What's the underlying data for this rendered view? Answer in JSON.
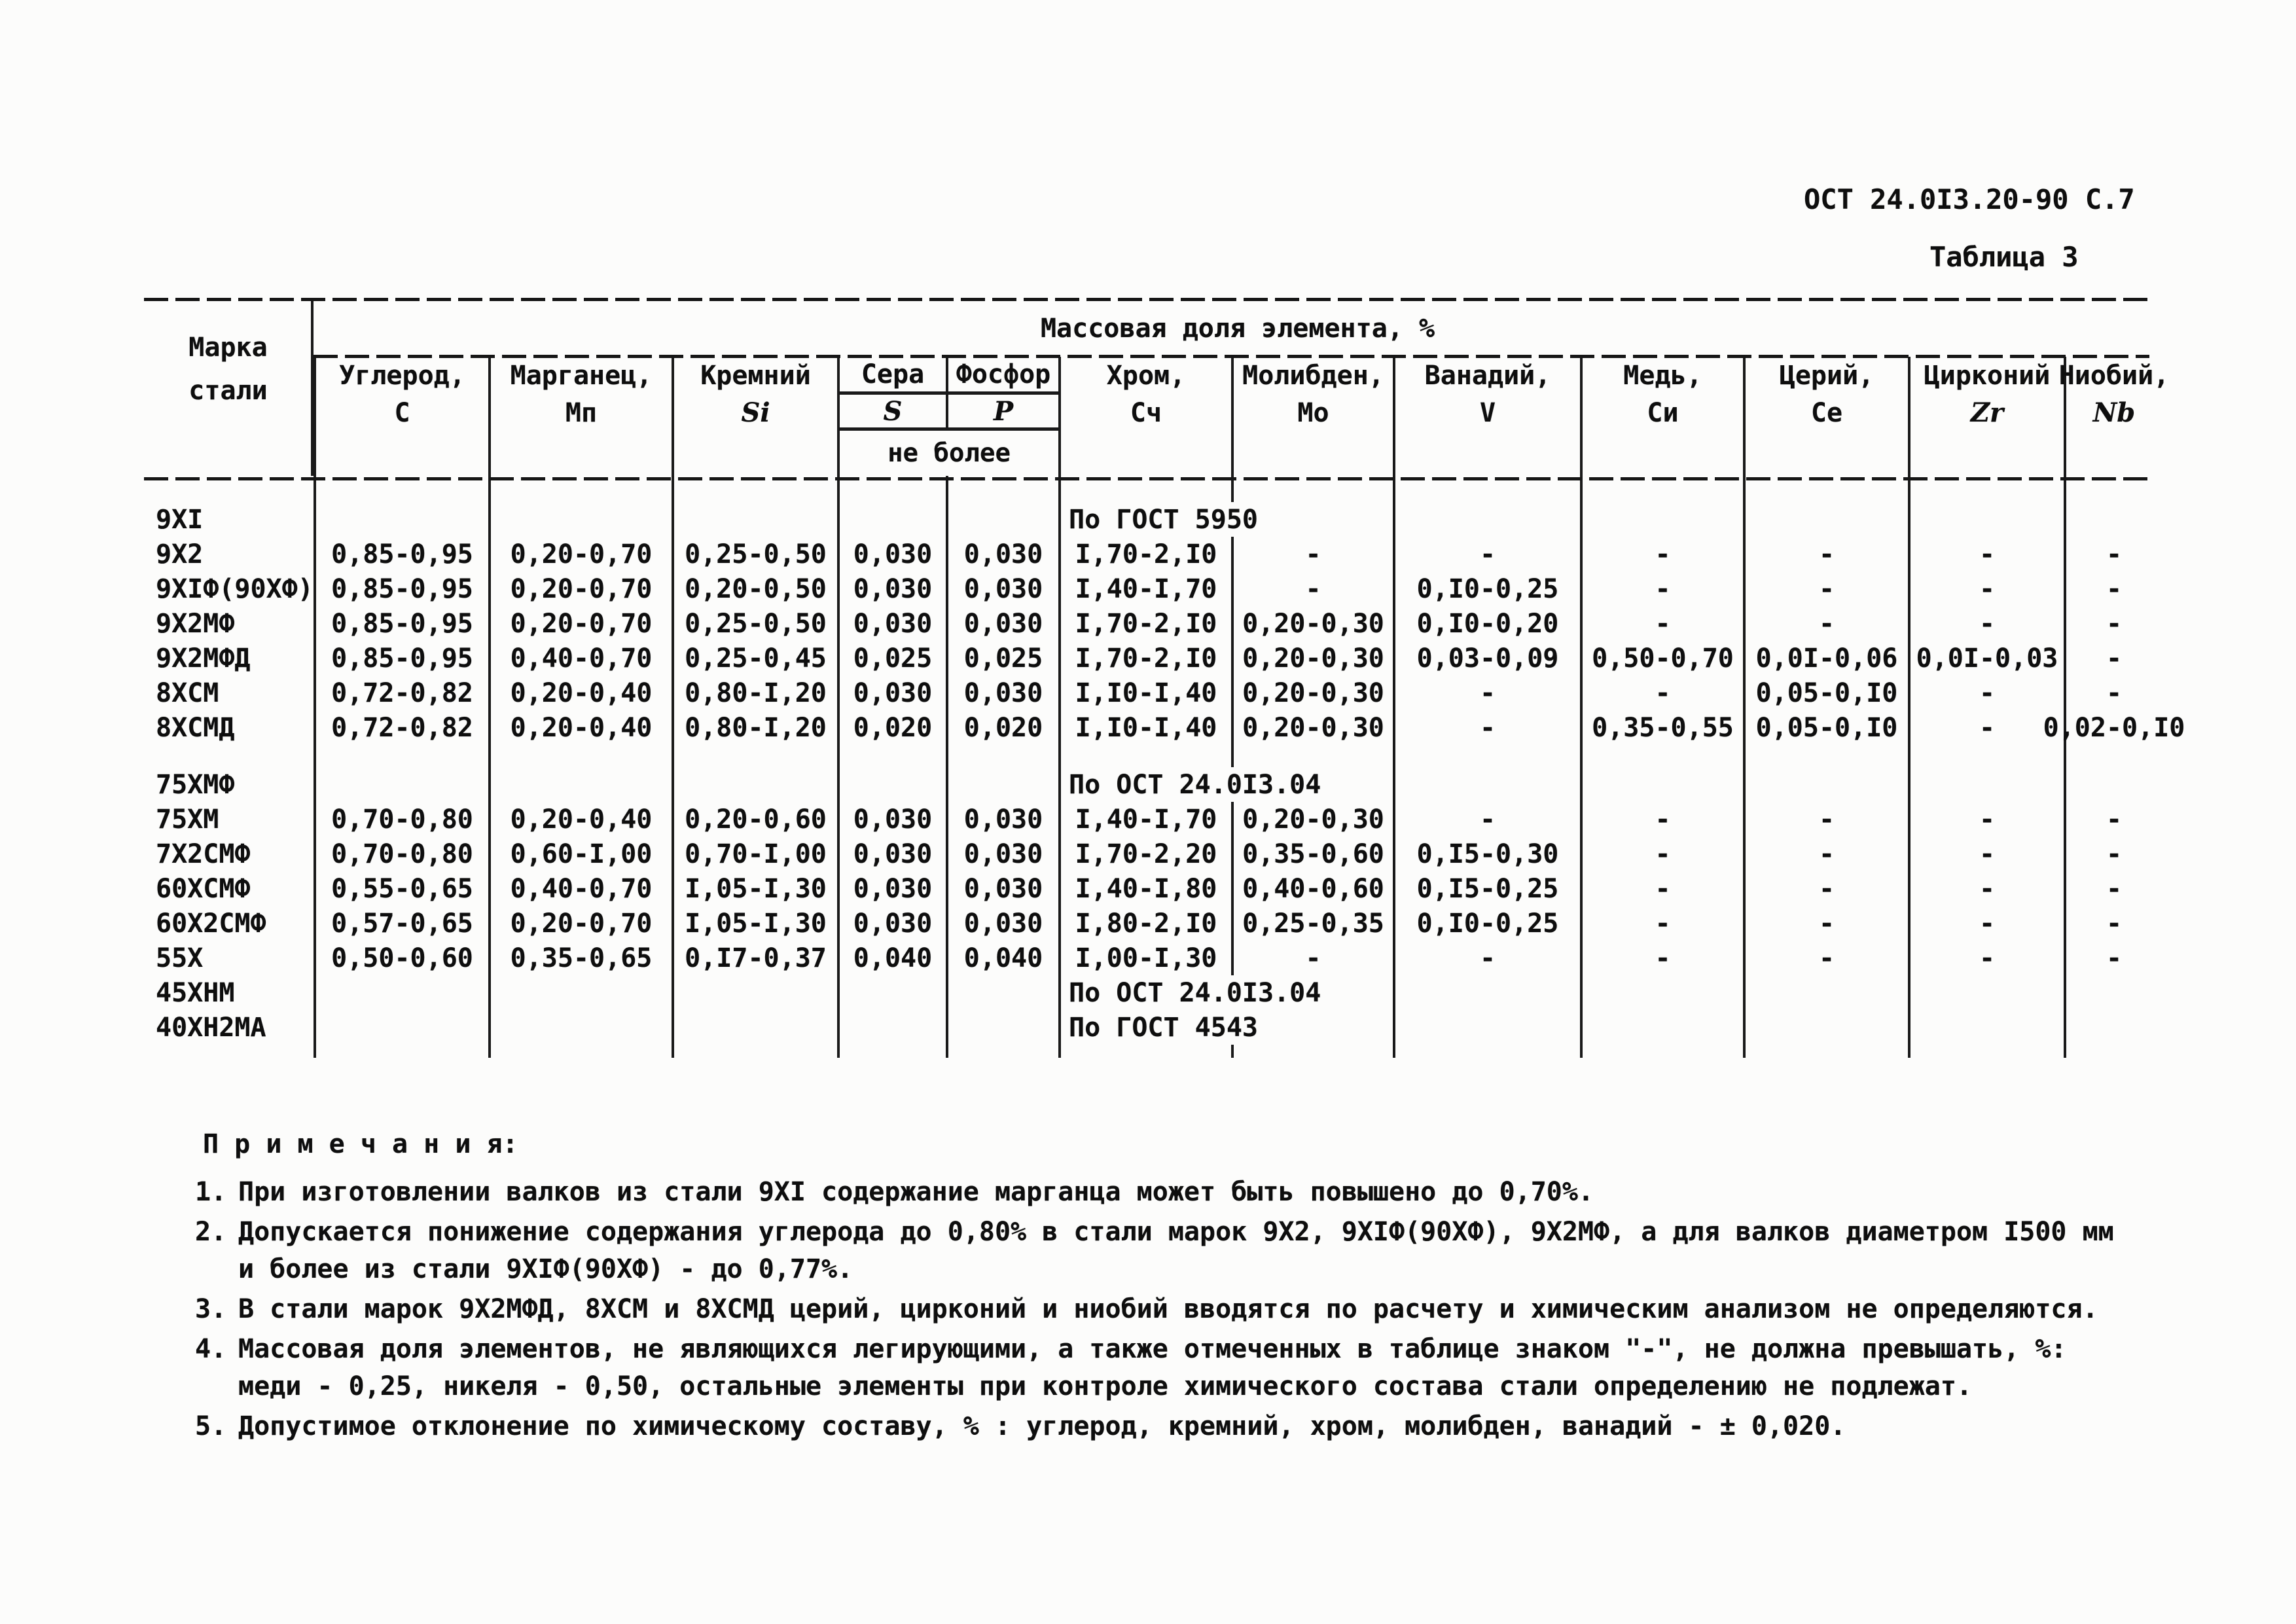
{
  "page": {
    "doc_ref": "ОСТ 24.0I3.20-90 С.7",
    "table_label": "Таблица 3"
  },
  "table": {
    "title": "Массовая доля элемента, %",
    "mark_header": "Марка\nстали",
    "sub_note": "не более",
    "columns": [
      {
        "name": "Углерод,",
        "symbol": "С"
      },
      {
        "name": "Марганец,",
        "symbol": "Мп"
      },
      {
        "name": "Кремний",
        "symbol": "Si",
        "italic": true
      },
      {
        "name": "Сера",
        "symbol": "S",
        "italic": true,
        "sub": true
      },
      {
        "name": "Фосфор",
        "symbol": "P",
        "italic": true,
        "sub": true
      },
      {
        "name": "Хром,",
        "symbol": "Сч"
      },
      {
        "name": "Молибден,",
        "symbol": "Мо"
      },
      {
        "name": "Ванадий,",
        "symbol": "V"
      },
      {
        "name": "Медь,",
        "symbol": "Си"
      },
      {
        "name": "Церий,",
        "symbol": "Се"
      },
      {
        "name": "Цирконий",
        "symbol": "Zr",
        "italic": true
      },
      {
        "name": "Ниобий,",
        "symbol": "Nb",
        "italic": true
      }
    ],
    "rows": [
      {
        "mark": "9ХI",
        "span": "По ГОСТ 5950"
      },
      {
        "mark": "9Х2",
        "cells": [
          "0,85-0,95",
          "0,20-0,70",
          "0,25-0,50",
          "0,030",
          "0,030",
          "I,70-2,I0",
          "-",
          "-",
          "-",
          "-",
          "-",
          "-"
        ]
      },
      {
        "mark": "9ХIФ(90ХФ)",
        "cells": [
          "0,85-0,95",
          "0,20-0,70",
          "0,20-0,50",
          "0,030",
          "0,030",
          "I,40-I,70",
          "-",
          "0,I0-0,25",
          "-",
          "-",
          "-",
          "-"
        ]
      },
      {
        "mark": "9Х2МФ",
        "cells": [
          "0,85-0,95",
          "0,20-0,70",
          "0,25-0,50",
          "0,030",
          "0,030",
          "I,70-2,I0",
          "0,20-0,30",
          "0,I0-0,20",
          "-",
          "-",
          "-",
          "-"
        ]
      },
      {
        "mark": "9Х2МФД",
        "cells": [
          "0,85-0,95",
          "0,40-0,70",
          "0,25-0,45",
          "0,025",
          "0,025",
          "I,70-2,I0",
          "0,20-0,30",
          "0,03-0,09",
          "0,50-0,70",
          "0,0I-0,06",
          "0,0I-0,03",
          "-"
        ]
      },
      {
        "mark": "8ХСМ",
        "cells": [
          "0,72-0,82",
          "0,20-0,40",
          "0,80-I,20",
          "0,030",
          "0,030",
          "I,I0-I,40",
          "0,20-0,30",
          "-",
          "-",
          "0,05-0,I0",
          "-",
          "-"
        ]
      },
      {
        "mark": "8ХСМД",
        "cells": [
          "0,72-0,82",
          "0,20-0,40",
          "0,80-I,20",
          "0,020",
          "0,020",
          "I,I0-I,40",
          "0,20-0,30",
          "-",
          "0,35-0,55",
          "0,05-0,I0",
          "-",
          "0,02-0,I0"
        ]
      },
      {
        "spacer": true
      },
      {
        "mark": "75ХМФ",
        "span": "По ОСТ 24.0I3.04"
      },
      {
        "mark": "75ХМ",
        "cells": [
          "0,70-0,80",
          "0,20-0,40",
          "0,20-0,60",
          "0,030",
          "0,030",
          "I,40-I,70",
          "0,20-0,30",
          "-",
          "-",
          "-",
          "-",
          "-"
        ]
      },
      {
        "mark": "7Х2СМФ",
        "cells": [
          "0,70-0,80",
          "0,60-I,00",
          "0,70-I,00",
          "0,030",
          "0,030",
          "I,70-2,20",
          "0,35-0,60",
          "0,I5-0,30",
          "-",
          "-",
          "-",
          "-"
        ]
      },
      {
        "mark": "60ХСМФ",
        "cells": [
          "0,55-0,65",
          "0,40-0,70",
          "I,05-I,30",
          "0,030",
          "0,030",
          "I,40-I,80",
          "0,40-0,60",
          "0,I5-0,25",
          "-",
          "-",
          "-",
          "-"
        ]
      },
      {
        "mark": "60Х2СМФ",
        "cells": [
          "0,57-0,65",
          "0,20-0,70",
          "I,05-I,30",
          "0,030",
          "0,030",
          "I,80-2,I0",
          "0,25-0,35",
          "0,I0-0,25",
          "-",
          "-",
          "-",
          "-"
        ]
      },
      {
        "mark": "55Х",
        "cells": [
          "0,50-0,60",
          "0,35-0,65",
          "0,I7-0,37",
          "0,040",
          "0,040",
          "I,00-I,30",
          "-",
          "-",
          "-",
          "-",
          "-",
          "-"
        ]
      },
      {
        "mark": "45ХНМ",
        "span": "По ОСТ 24.0I3.04"
      },
      {
        "mark": "40ХН2МА",
        "span": "По ГОСТ 4543"
      }
    ]
  },
  "notes": {
    "title": "П р и м е ч а н и я:",
    "items": [
      {
        "num": "1.",
        "lines": [
          "При изготовлении валков из стали 9ХI содержание марганца может быть повышено до 0,70%."
        ]
      },
      {
        "num": "2.",
        "lines": [
          "Допускается понижение содержания углерода до 0,80% в стали марок 9Х2, 9ХIФ(90ХФ), 9Х2МФ, а для валков диаметром I500 мм",
          "и более из стали 9ХIФ(90ХФ) - до 0,77%."
        ]
      },
      {
        "num": "3.",
        "lines": [
          "В стали марок 9Х2МФД, 8ХСМ и 8ХСМД церий, цирконий и ниобий вводятся по расчету и химическим анализом не определяются."
        ]
      },
      {
        "num": "4.",
        "lines": [
          "Массовая доля элементов, не являющихся легирующими, а также отмеченных в таблице знаком \"-\", не должна превышать, %:",
          "меди - 0,25, никеля - 0,50, остальные элементы при контроле химического состава стали определению не подлежат."
        ]
      },
      {
        "num": "5.",
        "lines": [
          "Допустимое отклонение по химическому составу, % : углерод, кремний, хром, молибден, ванадий - ± 0,020."
        ]
      }
    ]
  }
}
